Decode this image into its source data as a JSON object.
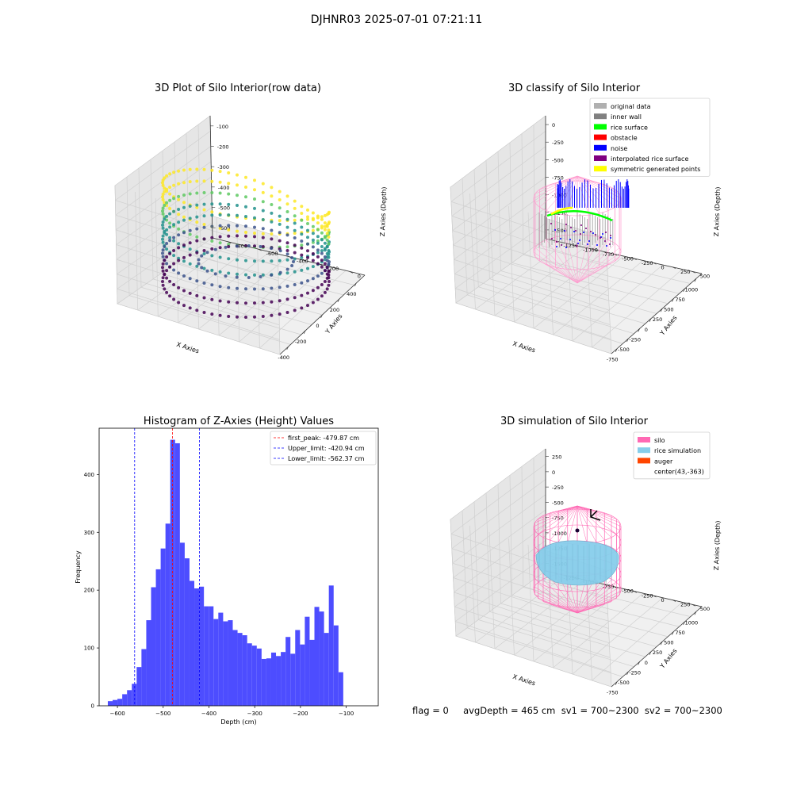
{
  "suptitle": "DJHNR03 2025-07-01 07:21:11",
  "bottom_text": "flag = 0     avgDepth = 465 cm  sv1 = 700~2300  sv2 = 700~2300",
  "chart_data": [
    {
      "type": "scatter",
      "title": "3D Plot of Silo Interior(row data)",
      "xlabel": "X Axies",
      "ylabel": "Y Axies",
      "zlabel": "Z Axies (Depth)",
      "xticks": [
        "-400",
        "-200",
        "0",
        "200",
        "400"
      ],
      "yticks": [
        "0",
        "-200",
        "-400",
        "-600",
        "-800"
      ],
      "zticks": [
        "-100",
        "-200",
        "-300",
        "-400",
        "-500",
        "-600"
      ],
      "colormap": "viridis"
    },
    {
      "type": "scatter",
      "title": "3D classify of Silo Interior",
      "xlabel": "X Axies",
      "ylabel": "Y Axies",
      "zlabel": "Z Axies (Depth)",
      "xticks": [
        "-750",
        "-500",
        "-250",
        "0",
        "250",
        "500",
        "750",
        "1000"
      ],
      "yticks": [
        "500",
        "250",
        "0",
        "-250",
        "-500",
        "-750",
        "-1000",
        "-1250"
      ],
      "zticks": [
        "0",
        "-250",
        "-500",
        "-750",
        "-1000",
        "-1250",
        "-1500"
      ],
      "legend_position": "top-right",
      "legend": [
        {
          "label": "original data",
          "color": "#b0b0b0"
        },
        {
          "label": "inner wall",
          "color": "#808080"
        },
        {
          "label": "rice surface",
          "color": "#00ff00"
        },
        {
          "label": "obstacle",
          "color": "#ff0000"
        },
        {
          "label": "noise",
          "color": "#0000ff"
        },
        {
          "label": "interpolated rice surface",
          "color": "#800080"
        },
        {
          "label": "symmetric generated points",
          "color": "#ffff00"
        }
      ]
    },
    {
      "type": "bar",
      "title": "Histogram of Z-Axies (Height) Values",
      "xlabel": "Depth (cm)",
      "ylabel": "Frequency",
      "bar_color": "#4d4dff",
      "x_range": [
        -640,
        -30
      ],
      "y_range": [
        0,
        480
      ],
      "xticks": [
        -600,
        -500,
        -400,
        -300,
        -200,
        -100
      ],
      "yticks": [
        0,
        100,
        200,
        300,
        400
      ],
      "bin_start": -621,
      "bin_width": 10.5,
      "values": [
        8,
        10,
        12,
        20,
        27,
        38,
        67,
        98,
        148,
        205,
        236,
        272,
        315,
        460,
        454,
        282,
        255,
        216,
        203,
        206,
        172,
        172,
        150,
        161,
        146,
        148,
        131,
        126,
        122,
        108,
        104,
        99,
        81,
        82,
        92,
        86,
        93,
        119,
        90,
        131,
        106,
        154,
        114,
        171,
        163,
        126,
        208,
        139,
        58
      ],
      "legend_position": "top-right",
      "vlines": [
        {
          "label": "first_peak: -479.87 cm",
          "x": -479.87,
          "color": "#ff0000"
        },
        {
          "label": "Upper_limit: -420.94 cm",
          "x": -420.94,
          "color": "#0000ff"
        },
        {
          "label": "Lower_limit: -562.37 cm",
          "x": -562.37,
          "color": "#0000ff"
        }
      ]
    },
    {
      "type": "scatter",
      "title": "3D simulation of Silo Interior",
      "xlabel": "X Axies",
      "ylabel": "Y Axies",
      "zlabel": "Z Axies (Depth)",
      "xticks": [
        "-750",
        "-500",
        "-250",
        "0",
        "250",
        "500",
        "750",
        "1000"
      ],
      "yticks": [
        "500",
        "250",
        "0",
        "-250",
        "-500",
        "-750",
        "-1000",
        "-1250"
      ],
      "zticks": [
        "250",
        "0",
        "-250",
        "-500",
        "-750",
        "-1000",
        "-1250",
        "-1500"
      ],
      "legend_position": "top-right",
      "legend": [
        {
          "label": "silo",
          "color": "#ff69b4"
        },
        {
          "label": "rice simulation",
          "color": "#87ceeb"
        },
        {
          "label": "auger",
          "color": "#ff4500"
        },
        {
          "label": "center(43,-363)",
          "color": ""
        }
      ]
    }
  ]
}
